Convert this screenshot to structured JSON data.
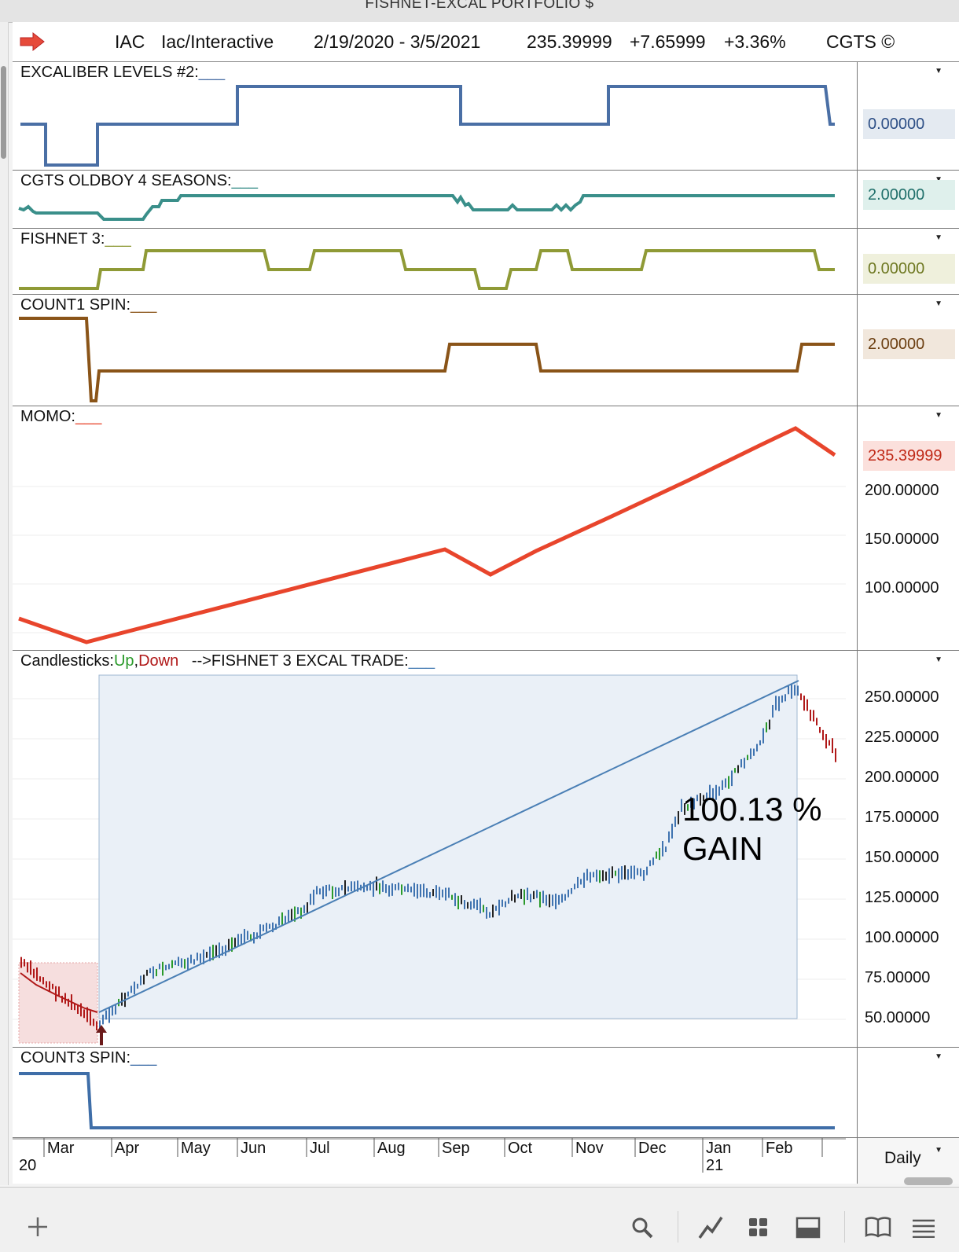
{
  "window": {
    "title": "FISHNET-EXCAL PORTFOLIO $"
  },
  "header": {
    "symbol": "IAC",
    "name": "Iac/Interactive",
    "date_range": "2/19/2020 - 3/5/2021",
    "last": "235.39999",
    "change": "+7.65999",
    "change_pct": "+3.36%",
    "brand": "CGTS ©"
  },
  "panes": {
    "excaliber": {
      "label": "EXCALIBER LEVELS #2:",
      "value": "0.00000",
      "color": "#4a6fa5"
    },
    "oldboy": {
      "label": "CGTS OLDBOY 4 SEASONS:",
      "value": "2.00000",
      "color": "#3a8f8a"
    },
    "fishnet": {
      "label": "FISHNET 3:",
      "value": "0.00000",
      "color": "#8f9a36"
    },
    "count1": {
      "label": "COUNT1 SPIN:",
      "value": "2.00000",
      "color": "#8a5418"
    },
    "momo": {
      "label": "MOMO:",
      "value": "235.39999",
      "color": "#e8452c",
      "ticks": [
        "200.00000",
        "150.00000",
        "100.00000"
      ]
    },
    "candles": {
      "label_prefix": "Candlesticks",
      "up": "Up",
      "down": "Down",
      "trade": "-->FISHNET 3 EXCAL TRADE:",
      "gain_pct": "100.13 %",
      "gain_label": "GAIN",
      "ticks": [
        "250.00000",
        "225.00000",
        "200.00000",
        "175.00000",
        "150.00000",
        "125.00000",
        "100.00000",
        "75.00000",
        "50.00000"
      ],
      "up_color": "#2a9a2a",
      "down_color": "#b01818",
      "trade_color": "#4a7fb5"
    },
    "count3": {
      "label": "COUNT3 SPIN:",
      "color": "#3f6ea8"
    }
  },
  "time_axis": {
    "months": [
      "Mar",
      "Apr",
      "May",
      "Jun",
      "Jul",
      "Aug",
      "Sep",
      "Oct",
      "Nov",
      "Dec",
      "Jan",
      "Feb"
    ],
    "year_start": "20",
    "year_next": "21",
    "interval": "Daily"
  },
  "toolbar": {
    "add": "add-icon",
    "search": "search-icon",
    "chart": "line-chart-icon",
    "grid": "grid-icon",
    "layout": "panel-layout-icon",
    "book": "book-icon",
    "menu": "menu-icon"
  }
}
